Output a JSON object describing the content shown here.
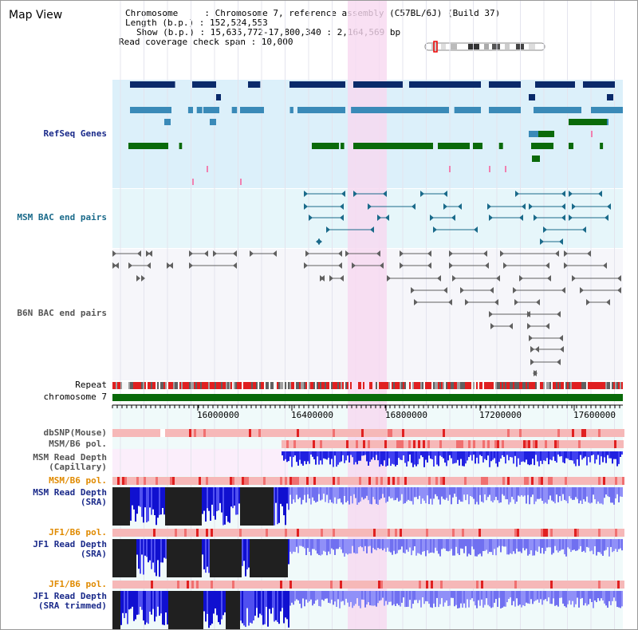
{
  "header": {
    "title": "Map View",
    "chromosome_line": "Chromosome     : Chromosome 7, reference assembly (C57BL/6J) (Build 37)",
    "length_line": "Length (b.p.) : 152,524,553",
    "show_line": "Show (b.p.) : 15,635,772-17,800,340 : 2,164,569 bp",
    "coverage_line": "Read coverage check span : 10,000"
  },
  "tracks": {
    "refseq": "RefSeq Genes",
    "msm_bac": "MSM BAC end pairs",
    "b6n_bac": "B6N BAC end pairs",
    "repeat": "Repeat",
    "chromosome": "chromosome 7",
    "dbsnp": "dbSNP(Mouse)",
    "msm_b6_pol_1": "MSM/B6 pol.",
    "msm_depth_cap_1": "MSM Read Depth",
    "msm_depth_cap_2": "(Capillary)",
    "msm_b6_pol_2": "MSM/B6 pol.",
    "msm_depth_sra_1": "MSM Read Depth",
    "msm_depth_sra_2": "(SRA)",
    "jf1_b6_pol_1": "JF1/B6 pol.",
    "jf1_depth_sra_1": "JF1 Read Depth",
    "jf1_depth_sra_2": "(SRA)",
    "jf1_b6_pol_2": "JF1/B6 pol.",
    "jf1_depth_trim_1": "JF1 Read Depth",
    "jf1_depth_trim_2": "(SRA trimmed)"
  },
  "axis": {
    "ticks": [
      "16000000",
      "16400000",
      "16800000",
      "17200000",
      "17600000"
    ]
  },
  "colors": {
    "highlight": "#f8d8f0",
    "refseq_bg": "#dcf0fa",
    "msm_bg": "#e6f6fa",
    "b6n_bg": "#f6f6fa",
    "gene_navy": "#0a2a6a",
    "gene_teal": "#3a8ab8",
    "gene_green": "#0a6a0a",
    "chromosome_bar": "#0a6a0a",
    "depth_blue": "#2020e0",
    "depth_dark": "#202020"
  }
}
